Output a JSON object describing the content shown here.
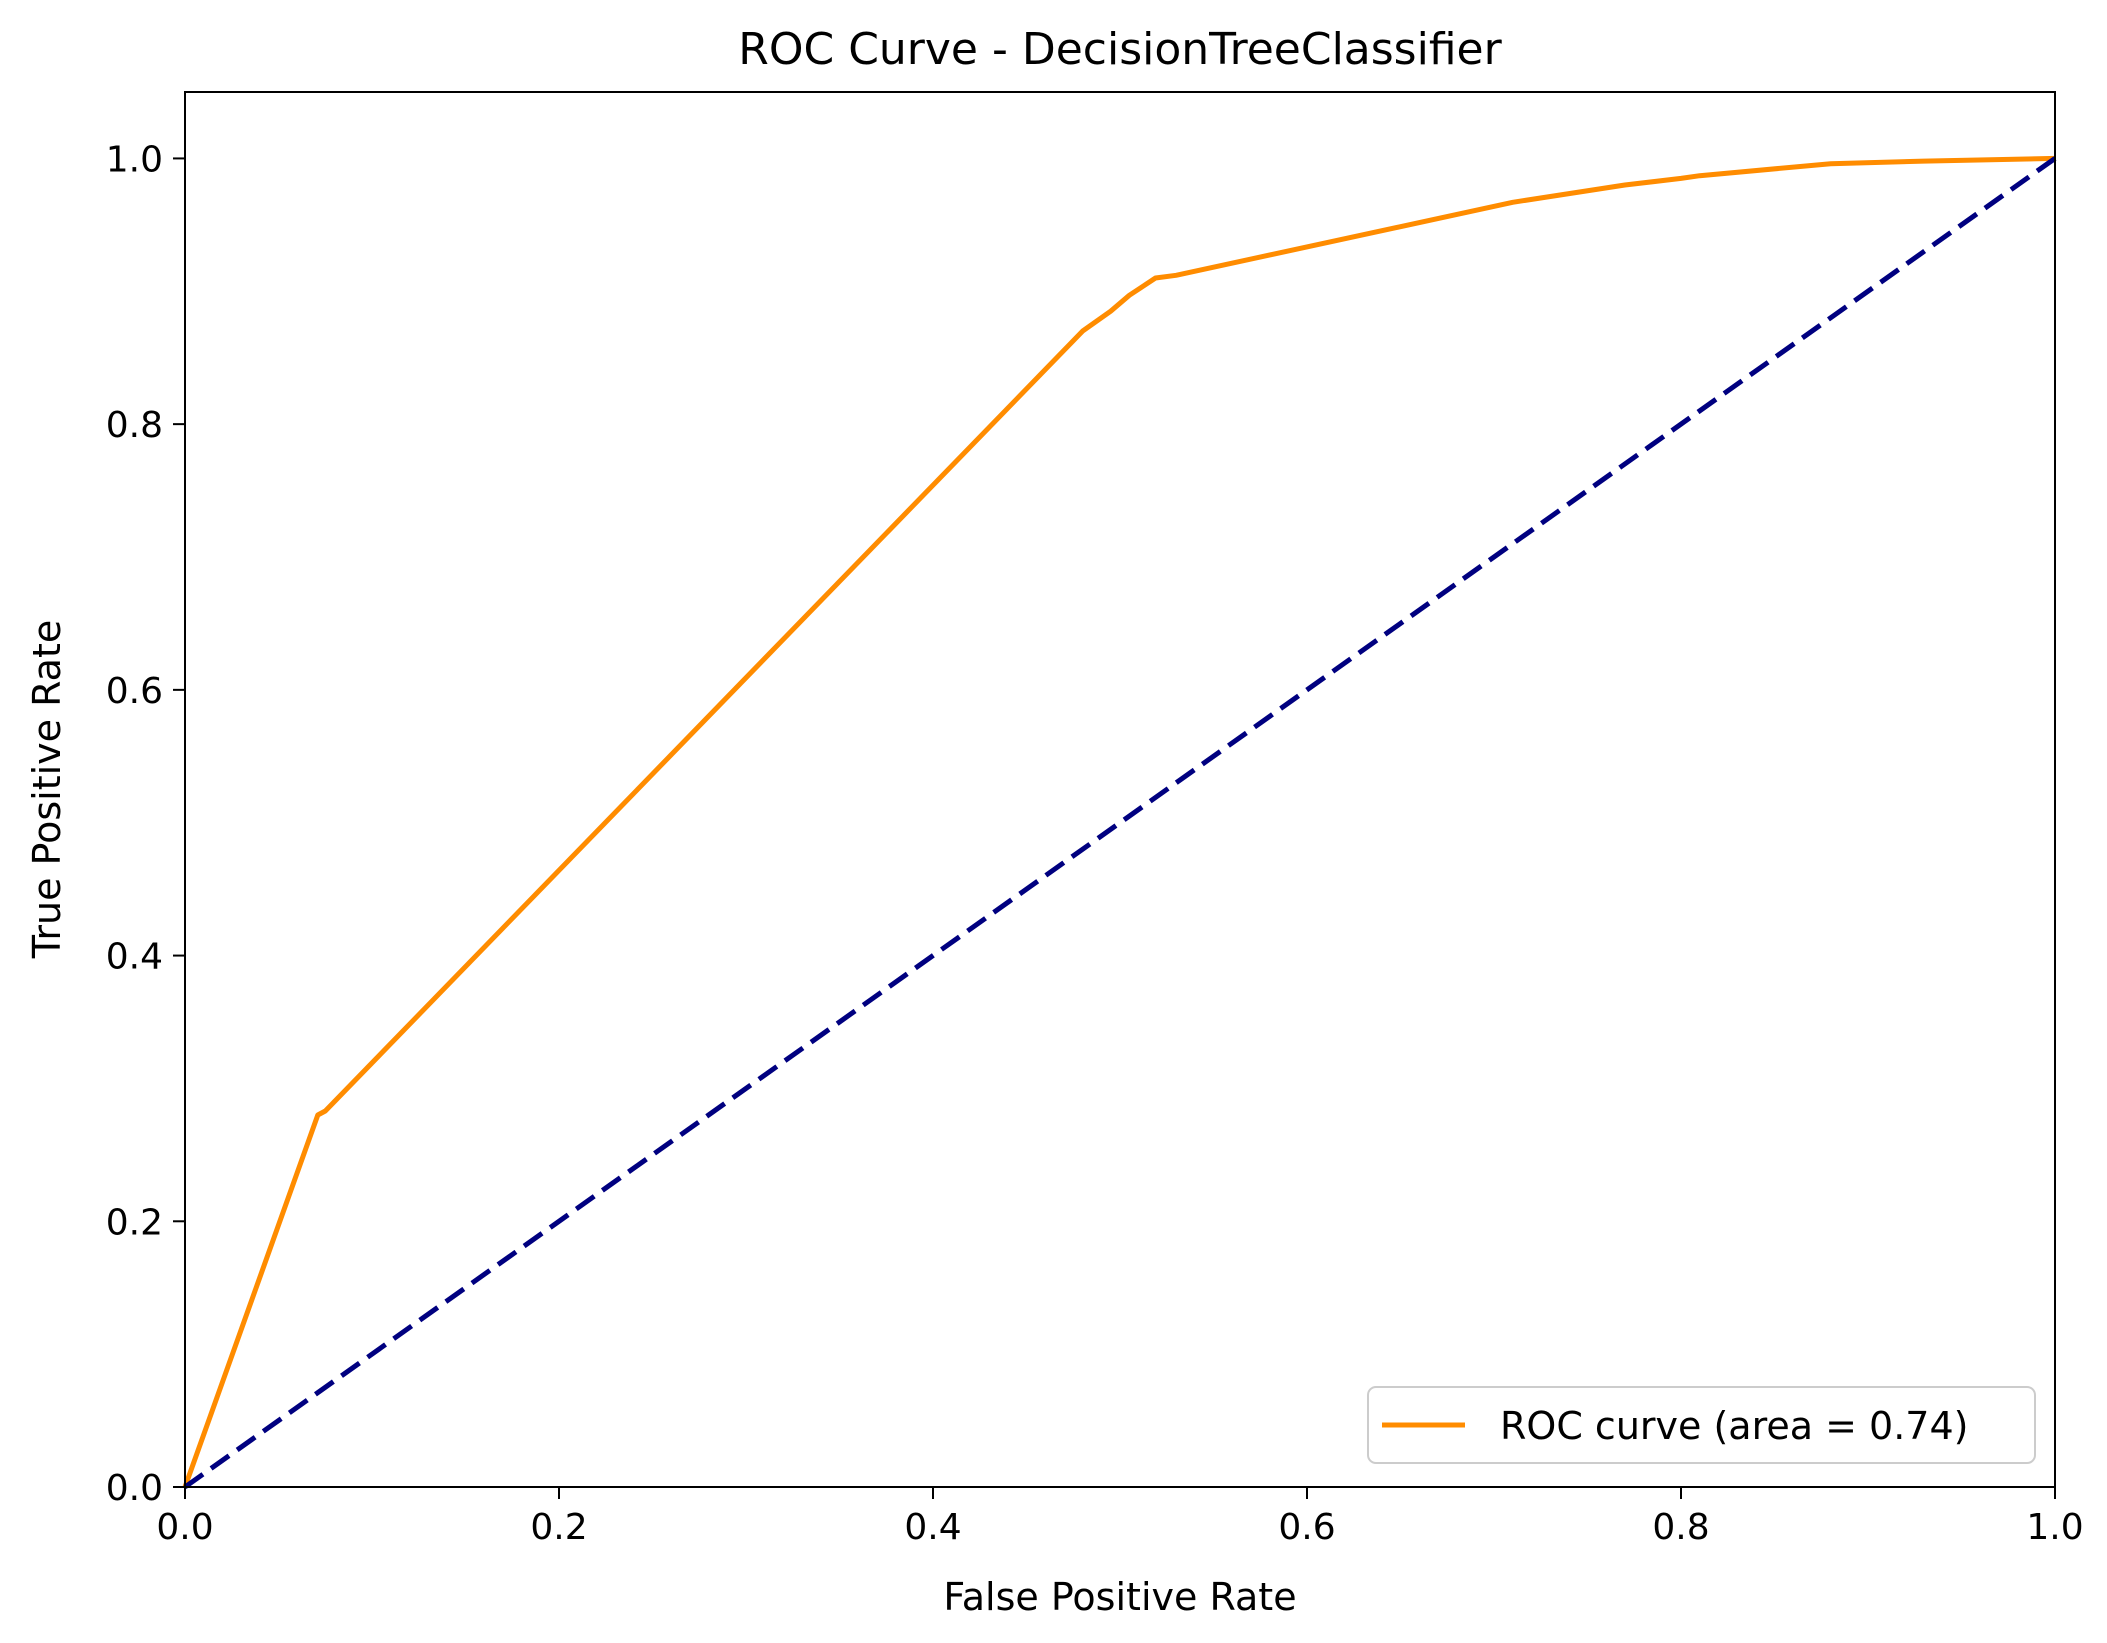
{
  "chart_data": {
    "type": "line",
    "title": "ROC Curve - DecisionTreeClassifier",
    "xlabel": "False Positive Rate",
    "ylabel": "True Positive Rate",
    "xlim": [
      0.0,
      1.0
    ],
    "ylim": [
      0.0,
      1.05
    ],
    "x_ticks": [
      0.0,
      0.2,
      0.4,
      0.6,
      0.8,
      1.0
    ],
    "y_ticks": [
      0.0,
      0.2,
      0.4,
      0.6,
      0.8,
      1.0
    ],
    "x_tick_labels": [
      "0.0",
      "0.2",
      "0.4",
      "0.6",
      "0.8",
      "1.0"
    ],
    "y_tick_labels": [
      "0.0",
      "0.2",
      "0.4",
      "0.6",
      "0.8",
      "1.0"
    ],
    "grid": false,
    "legend_position": "lower-right",
    "series": [
      {
        "name": "ROC curve (area = 0.74)",
        "color": "#ff8c00",
        "style": "solid",
        "x": [
          0.0,
          0.071,
          0.075,
          0.48,
          0.495,
          0.505,
          0.519,
          0.53,
          0.71,
          0.77,
          0.8,
          0.81,
          0.88,
          0.93,
          1.0
        ],
        "y": [
          0.0,
          0.28,
          0.283,
          0.87,
          0.885,
          0.897,
          0.91,
          0.912,
          0.967,
          0.98,
          0.985,
          0.987,
          0.996,
          0.998,
          1.0
        ]
      },
      {
        "name": "",
        "color": "#000080",
        "style": "dashed",
        "x": [
          0.0,
          1.0
        ],
        "y": [
          0.0,
          1.0
        ]
      }
    ]
  }
}
